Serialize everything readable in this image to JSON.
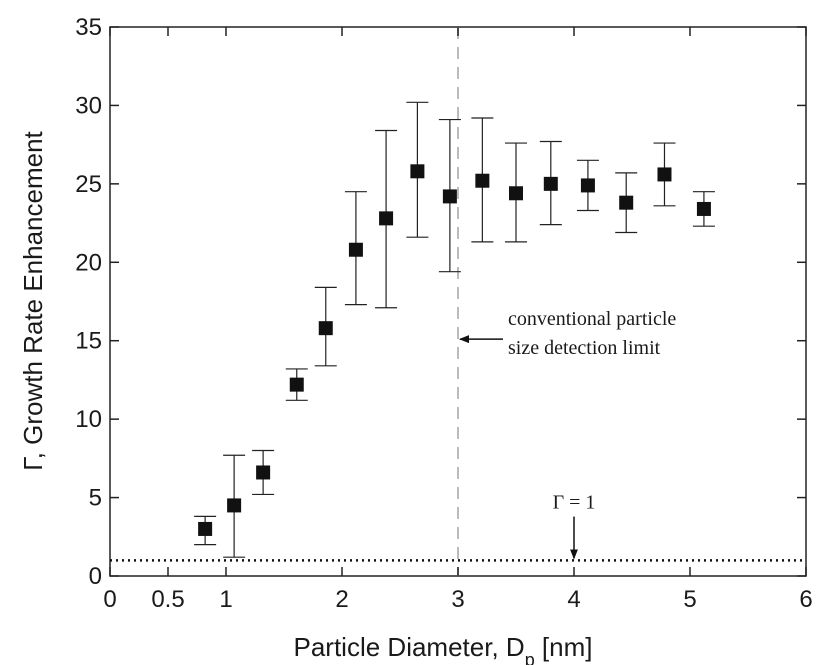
{
  "chart_data": {
    "type": "scatter",
    "xlabel": "Particle Diameter, D",
    "xlabel_sub": "p",
    "xlabel_unit": " [nm]",
    "ylabel": "Γ, Growth Rate Enhancement",
    "xlim": [
      0,
      6
    ],
    "ylim": [
      0,
      35
    ],
    "xticks": [
      0,
      0.5,
      1,
      2,
      3,
      4,
      5,
      6
    ],
    "xtick_labels": [
      "0",
      "0.5",
      "1",
      "2",
      "3",
      "4",
      "5",
      "6"
    ],
    "yticks": [
      0,
      5,
      10,
      15,
      20,
      25,
      30,
      35
    ],
    "ytick_labels": [
      "0",
      "5",
      "10",
      "15",
      "20",
      "25",
      "30",
      "35"
    ],
    "grid": false,
    "series": [
      {
        "marker": "square",
        "color": "#111111",
        "points": [
          {
            "x": 0.82,
            "y": 3.0,
            "err_low": 2.0,
            "err_high": 3.8
          },
          {
            "x": 1.07,
            "y": 4.5,
            "err_low": 1.2,
            "err_high": 7.7
          },
          {
            "x": 1.32,
            "y": 6.6,
            "err_low": 5.2,
            "err_high": 8.0
          },
          {
            "x": 1.61,
            "y": 12.2,
            "err_low": 11.2,
            "err_high": 13.2
          },
          {
            "x": 1.86,
            "y": 15.8,
            "err_low": 13.4,
            "err_high": 18.4
          },
          {
            "x": 2.12,
            "y": 20.8,
            "err_low": 17.3,
            "err_high": 24.5
          },
          {
            "x": 2.38,
            "y": 22.8,
            "err_low": 17.1,
            "err_high": 28.4
          },
          {
            "x": 2.65,
            "y": 25.8,
            "err_low": 21.6,
            "err_high": 30.2
          },
          {
            "x": 2.93,
            "y": 24.2,
            "err_low": 19.4,
            "err_high": 29.1
          },
          {
            "x": 3.21,
            "y": 25.2,
            "err_low": 21.3,
            "err_high": 29.2
          },
          {
            "x": 3.5,
            "y": 24.4,
            "err_low": 21.3,
            "err_high": 27.6
          },
          {
            "x": 3.8,
            "y": 25.0,
            "err_low": 22.4,
            "err_high": 27.7
          },
          {
            "x": 4.12,
            "y": 24.9,
            "err_low": 23.3,
            "err_high": 26.5
          },
          {
            "x": 4.45,
            "y": 23.8,
            "err_low": 21.9,
            "err_high": 25.7
          },
          {
            "x": 4.78,
            "y": 25.6,
            "err_low": 23.6,
            "err_high": 27.6
          },
          {
            "x": 5.12,
            "y": 23.4,
            "err_low": 22.3,
            "err_high": 24.5
          }
        ]
      }
    ],
    "reference_lines": [
      {
        "orientation": "horizontal",
        "value": 1,
        "style": "dotted",
        "color": "#111111"
      },
      {
        "orientation": "vertical",
        "value": 3,
        "style": "dashed",
        "color": "#bbbbbb"
      }
    ],
    "annotations": [
      {
        "lines": [
          "conventional particle",
          "size detection limit"
        ],
        "x": 3.75,
        "y": 16.0,
        "arrow_to_x": 3.0,
        "arrow_to_y": 15.1
      },
      {
        "lines": [
          "Γ = 1"
        ],
        "x": 4.0,
        "y": 4.3,
        "arrow_to_x": 4.0,
        "arrow_to_y": 1.0
      }
    ]
  }
}
